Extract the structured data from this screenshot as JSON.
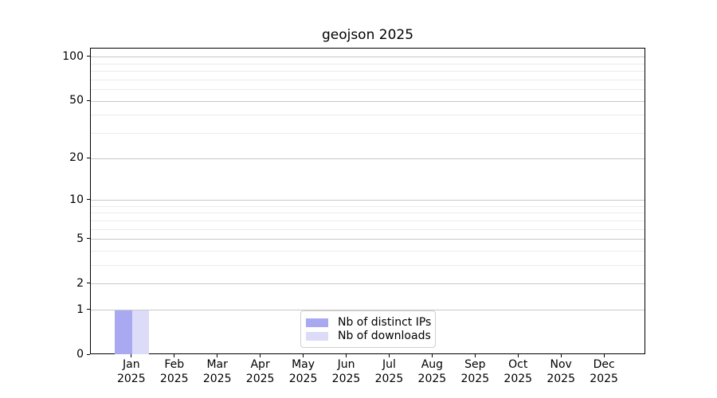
{
  "chart_data": {
    "type": "bar",
    "title": "geojson 2025",
    "months": [
      "Jan",
      "Feb",
      "Mar",
      "Apr",
      "May",
      "Jun",
      "Jul",
      "Aug",
      "Sep",
      "Oct",
      "Nov",
      "Dec"
    ],
    "year": "2025",
    "series": [
      {
        "name": "Nb of distinct IPs",
        "color": "#a9a9f1",
        "values": [
          1,
          0,
          0,
          0,
          0,
          0,
          0,
          0,
          0,
          0,
          0,
          0
        ]
      },
      {
        "name": "Nb of downloads",
        "color": "#dcdcf8",
        "values": [
          1,
          0,
          0,
          0,
          0,
          0,
          0,
          0,
          0,
          0,
          0,
          0
        ]
      }
    ],
    "yscale": "log1p",
    "ylim": [
      0,
      115
    ],
    "y_major_ticks": [
      0,
      1,
      2,
      5,
      10,
      20,
      50,
      100
    ],
    "y_minor_ticks": [
      3,
      4,
      6,
      7,
      8,
      9,
      30,
      40,
      60,
      70,
      80,
      90
    ],
    "grid": {
      "major_color": "#c8c8c8",
      "minor_color": "#ebebeb"
    },
    "legend_position": "lower center",
    "colors": {
      "background": "#ffffff",
      "spine": "#000000",
      "text": "#000000"
    }
  }
}
